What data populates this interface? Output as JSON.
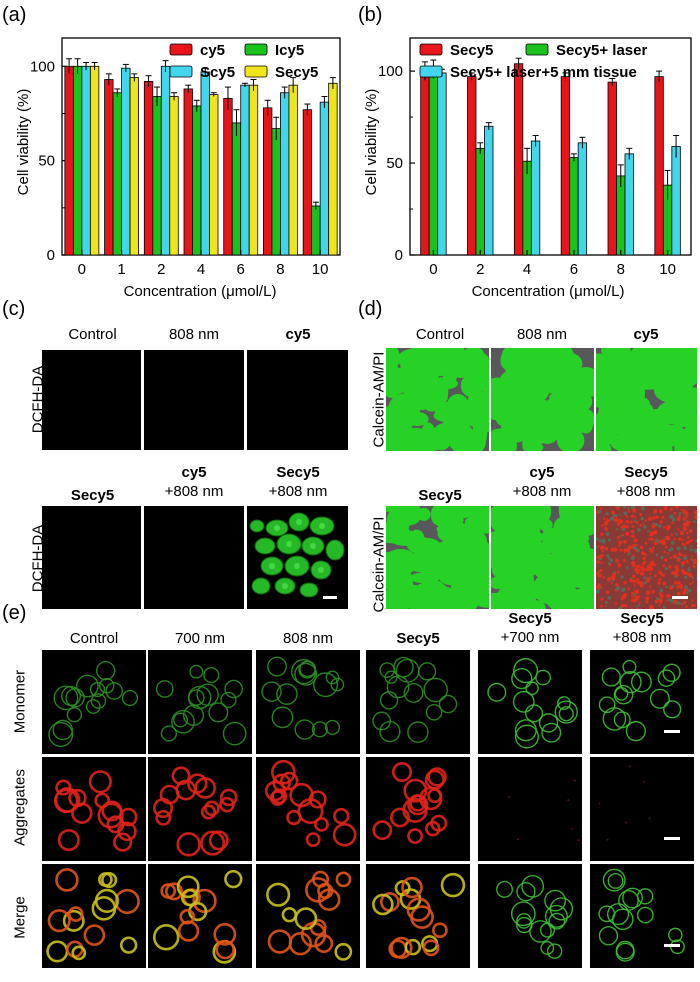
{
  "panel_labels": {
    "a": "(a)",
    "b": "(b)",
    "c": "(c)",
    "d": "(d)",
    "e": "(e)"
  },
  "colors": {
    "red": "#e8141a",
    "green": "#19c21d",
    "cyan": "#41d6ee",
    "yellow": "#f2e41a",
    "fluor_green": "#27d227",
    "fluor_red": "#e5231a",
    "live_bg": "#58585a"
  },
  "chart_data": [
    {
      "type": "bar",
      "ylabel": "Cell viability (%)",
      "xlabel": "Concentration (μmol/L)",
      "ylim": [
        0,
        115
      ],
      "yticks": [
        0,
        50,
        100
      ],
      "categories": [
        "0",
        "1",
        "2",
        "4",
        "6",
        "8",
        "10"
      ],
      "legend_placement": "top-right",
      "series": [
        {
          "name": "cy5",
          "color": "#e8141a",
          "values": [
            100,
            93,
            92,
            88,
            83,
            78,
            77
          ],
          "errors": [
            4,
            3,
            3,
            2,
            6,
            4,
            3
          ]
        },
        {
          "name": "Icy5",
          "color": "#19c21d",
          "values": [
            100,
            86,
            84,
            79,
            70,
            67,
            26
          ],
          "errors": [
            4,
            2,
            5,
            3,
            7,
            6,
            2
          ]
        },
        {
          "name": "Scy5",
          "color": "#41d6ee",
          "values": [
            100,
            99,
            100,
            97,
            90,
            86,
            81
          ],
          "errors": [
            2,
            2,
            3,
            2,
            1,
            3,
            3
          ]
        },
        {
          "name": "Secy5",
          "color": "#f2e41a",
          "values": [
            100,
            94,
            84,
            85,
            90,
            90,
            91
          ],
          "errors": [
            2,
            2,
            2,
            1,
            3,
            4,
            3
          ]
        }
      ]
    },
    {
      "type": "bar",
      "ylabel": "Cell viability (%)",
      "xlabel": "Concentration (μmol/L)",
      "ylim": [
        0,
        118
      ],
      "yticks": [
        0,
        50,
        100
      ],
      "categories": [
        "0",
        "2",
        "4",
        "6",
        "8",
        "10"
      ],
      "legend_placement": "top",
      "series": [
        {
          "name": "Secy5",
          "color": "#e8141a",
          "values": [
            100,
            97,
            104,
            97,
            94,
            97
          ],
          "errors": [
            5,
            2,
            3,
            2,
            2,
            3
          ]
        },
        {
          "name": "Secy5+ laser",
          "color": "#19c21d",
          "values": [
            101,
            58,
            51,
            53,
            43,
            38
          ],
          "errors": [
            5,
            3,
            7,
            2,
            6,
            8
          ]
        },
        {
          "name": "Secy5+ laser+5 mm tissue",
          "color": "#41d6ee",
          "values": [
            99,
            70,
            62,
            61,
            55,
            59
          ],
          "errors": [
            2,
            2,
            3,
            3,
            3,
            6
          ]
        }
      ]
    }
  ],
  "panel_c": {
    "row_label": "DCFH-DA",
    "row1": [
      {
        "line1": "Control",
        "line2": ""
      },
      {
        "line1": "808 nm",
        "line2": ""
      },
      {
        "line1": "cy5",
        "line2": ""
      }
    ],
    "row2": [
      {
        "line1": "Secy5",
        "line2": ""
      },
      {
        "line1": "cy5",
        "line2": "+808 nm"
      },
      {
        "line1": "Secy5",
        "line2": "+808 nm"
      }
    ]
  },
  "panel_d": {
    "row_label": "Calcein-AM/PI",
    "row1": [
      {
        "line1": "Control",
        "line2": ""
      },
      {
        "line1": "808 nm",
        "line2": ""
      },
      {
        "line1": "cy5",
        "line2": ""
      }
    ],
    "row2": [
      {
        "line1": "Secy5",
        "line2": ""
      },
      {
        "line1": "cy5",
        "line2": "+808 nm"
      },
      {
        "line1": "Secy5",
        "line2": "+808 nm"
      }
    ]
  },
  "panel_e": {
    "columns": [
      {
        "line1": "Control",
        "line2": ""
      },
      {
        "line1": "700 nm",
        "line2": ""
      },
      {
        "line1": "808 nm",
        "line2": ""
      },
      {
        "line1": "Secy5",
        "line2": ""
      },
      {
        "line1": "Secy5",
        "line2": "+700 nm"
      },
      {
        "line1": "Secy5",
        "line2": "+808 nm"
      }
    ],
    "rows": [
      "Monomer",
      "Aggregates",
      "Merge"
    ]
  }
}
